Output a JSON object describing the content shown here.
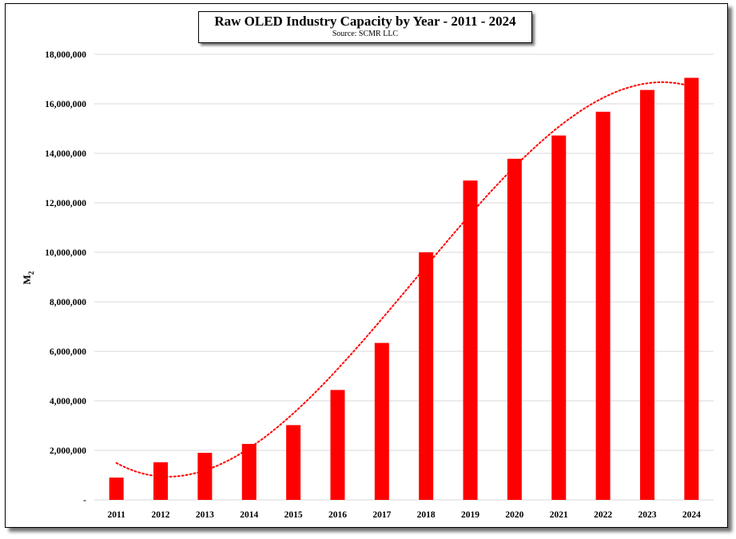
{
  "chart_data": {
    "type": "bar",
    "title": "Raw OLED Industry Capacity by Year - 2011 - 2024",
    "subtitle": "Source: SCMR LLC",
    "xlabel": "",
    "ylabel": "M",
    "ylabel_subscript": "2",
    "categories": [
      "2011",
      "2012",
      "2013",
      "2014",
      "2015",
      "2016",
      "2017",
      "2018",
      "2019",
      "2020",
      "2021",
      "2022",
      "2023",
      "2024"
    ],
    "values": [
      900000,
      1520000,
      1900000,
      2260000,
      3020000,
      4440000,
      6340000,
      10000000,
      12900000,
      13780000,
      14720000,
      15680000,
      16560000,
      17050000
    ],
    "ylim": [
      0,
      18000000
    ],
    "yticks": [
      0,
      2000000,
      4000000,
      6000000,
      8000000,
      10000000,
      12000000,
      14000000,
      16000000,
      18000000
    ],
    "ytick_labels": [
      "-",
      "2,000,000",
      "4,000,000",
      "6,000,000",
      "8,000,000",
      "10,000,000",
      "12,000,000",
      "14,000,000",
      "16,000,000",
      "18,000,000"
    ],
    "grid": true,
    "trendline": {
      "type": "polynomial",
      "style": "dotted",
      "color": "#ff0000"
    },
    "colors": {
      "bar": "#ff0000",
      "grid": "#d9d9d9"
    }
  }
}
